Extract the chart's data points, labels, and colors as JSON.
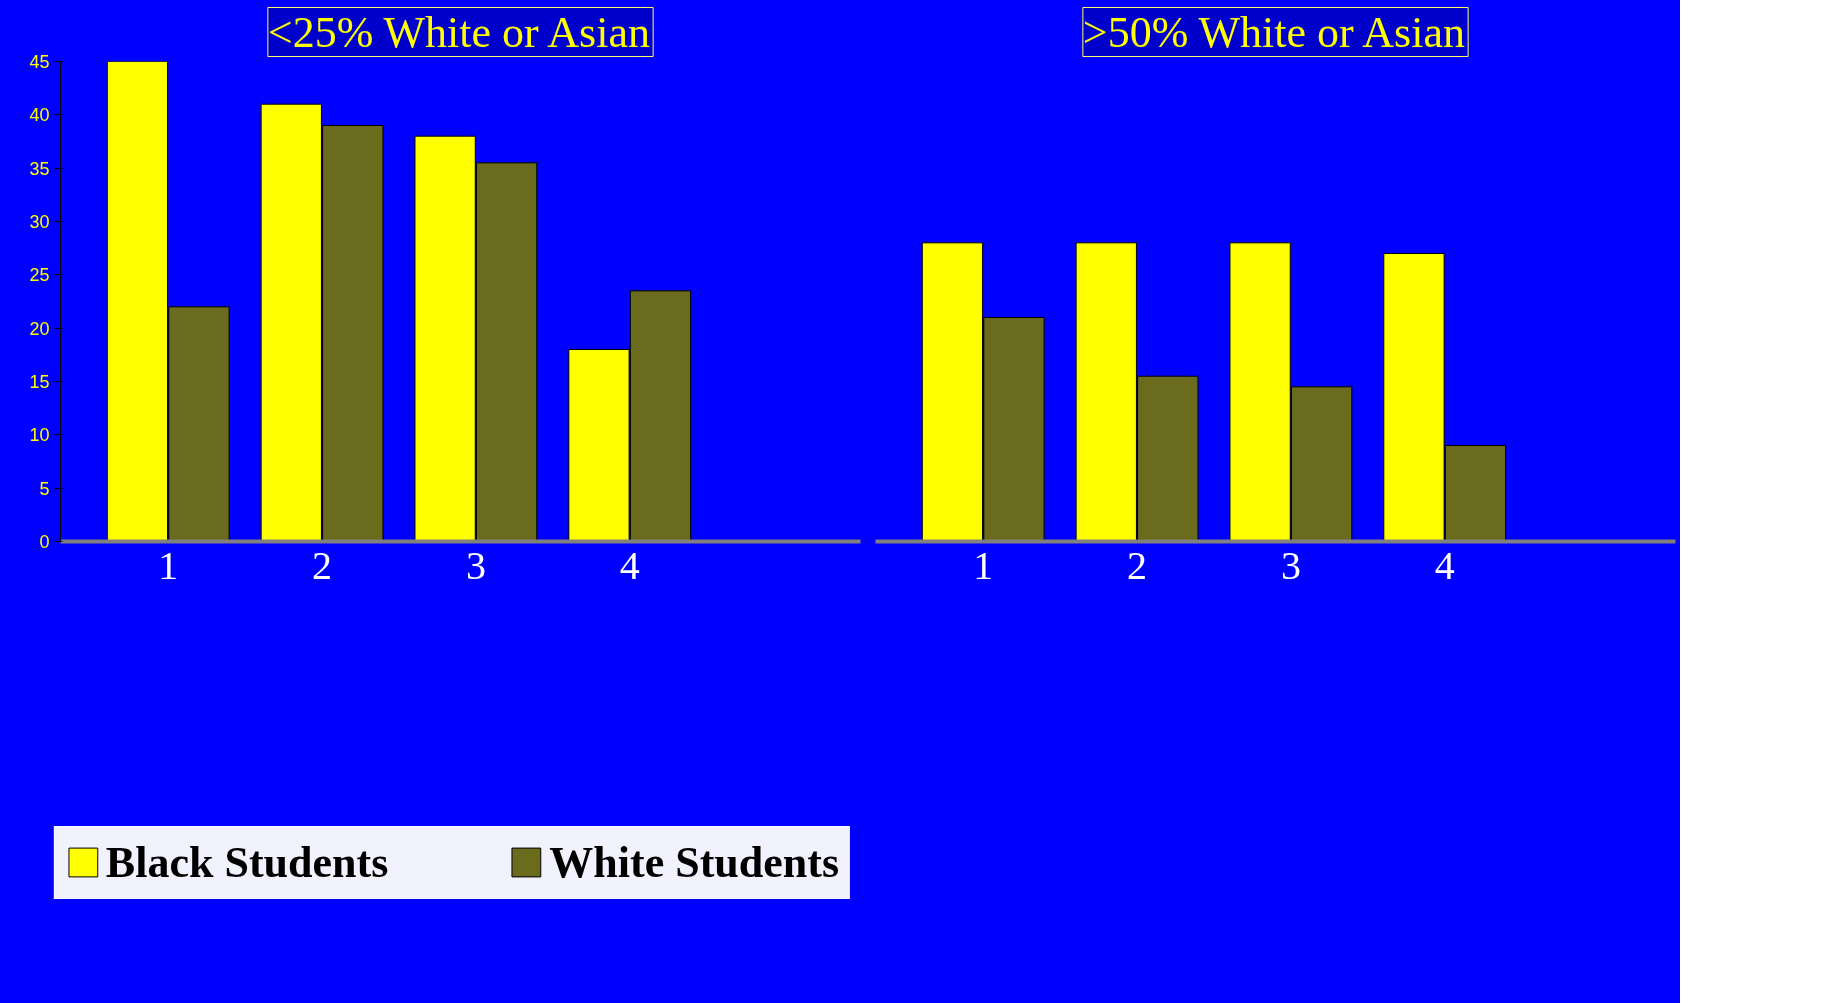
{
  "chart_data": [
    {
      "type": "bar",
      "title": "<25% White or Asian",
      "categories": [
        "1",
        "2",
        "3",
        "4"
      ],
      "series": [
        {
          "name": "Black Students",
          "color": "#ffff00",
          "values": [
            45,
            41,
            38,
            18
          ]
        },
        {
          "name": "White Students",
          "color": "#6b6b1e",
          "values": [
            22,
            39,
            35.5,
            23.5
          ]
        }
      ],
      "ylim": [
        0,
        45
      ],
      "yticks": [
        0,
        5,
        10,
        15,
        20,
        25,
        30,
        35,
        40,
        45
      ],
      "grid": false,
      "legend": "bottom"
    },
    {
      "type": "bar",
      "title": ">50% White or Asian",
      "categories": [
        "1",
        "2",
        "3",
        "4"
      ],
      "series": [
        {
          "color": "#ffff00",
          "values": [
            28,
            28,
            28,
            27
          ]
        },
        {
          "color": "#6b6b1e",
          "values": [
            21,
            15.5,
            14.5,
            9
          ]
        }
      ],
      "ylim": [
        0,
        45
      ],
      "tick_labels": "x",
      "grid": false
    }
  ]
}
